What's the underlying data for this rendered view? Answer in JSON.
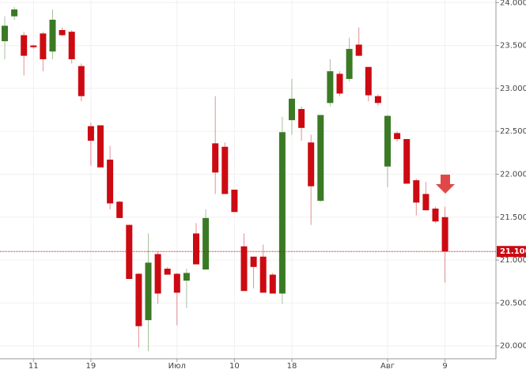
{
  "chart_data": {
    "type": "candlestick",
    "categories": [
      null,
      null,
      null,
      "11",
      null,
      null,
      null,
      null,
      null,
      "19",
      null,
      null,
      null,
      null,
      null,
      null,
      null,
      null,
      "Июл",
      null,
      null,
      null,
      null,
      null,
      "10",
      null,
      null,
      null,
      null,
      null,
      "18",
      null,
      null,
      null,
      null,
      null,
      null,
      null,
      null,
      null,
      "Авг",
      null,
      null,
      null,
      null,
      null,
      "9"
    ],
    "open": [
      23.55,
      23.84,
      23.62,
      23.5,
      23.64,
      23.43,
      23.68,
      23.66,
      23.26,
      22.56,
      22.57,
      22.17,
      21.68,
      21.41,
      20.84,
      20.3,
      21.07,
      20.9,
      20.84,
      20.76,
      21.31,
      20.89,
      22.36,
      22.32,
      21.82,
      21.16,
      21.04,
      21.04,
      20.83,
      20.61,
      22.63,
      22.76,
      22.37,
      21.69,
      22.83,
      23.17,
      23.11,
      23.51,
      23.25,
      22.91,
      22.09,
      22.48,
      22.41,
      21.93,
      21.77,
      21.6,
      21.5
    ],
    "high": [
      23.84,
      23.95,
      23.66,
      23.51,
      23.66,
      23.92,
      23.71,
      23.68,
      23.29,
      22.6,
      22.57,
      22.33,
      21.69,
      21.41,
      20.85,
      21.31,
      21.1,
      20.92,
      20.85,
      20.9,
      21.43,
      21.59,
      22.91,
      22.37,
      21.82,
      21.31,
      21.04,
      21.18,
      20.85,
      22.67,
      23.11,
      22.79,
      22.46,
      22.69,
      23.34,
      23.2,
      23.59,
      23.71,
      23.25,
      22.93,
      22.69,
      22.5,
      22.41,
      21.95,
      21.91,
      21.62,
      21.62
    ],
    "low": [
      23.34,
      23.8,
      23.15,
      23.46,
      23.2,
      23.34,
      23.61,
      23.29,
      22.85,
      22.1,
      22.08,
      21.59,
      21.49,
      20.78,
      19.98,
      19.94,
      20.49,
      20.83,
      20.24,
      20.44,
      20.95,
      20.89,
      21.77,
      21.77,
      21.56,
      20.64,
      20.67,
      20.62,
      20.61,
      20.49,
      22.46,
      22.39,
      21.41,
      21.68,
      22.79,
      22.91,
      23.08,
      23.38,
      22.85,
      22.8,
      21.85,
      22.38,
      21.89,
      21.52,
      21.58,
      21.43,
      20.74
    ],
    "close": [
      23.73,
      23.92,
      23.38,
      23.48,
      23.34,
      23.8,
      23.62,
      23.34,
      22.91,
      22.39,
      22.08,
      21.66,
      21.49,
      20.78,
      20.23,
      20.97,
      20.61,
      20.83,
      20.62,
      20.85,
      20.95,
      21.49,
      22.02,
      21.77,
      21.56,
      20.64,
      20.92,
      20.62,
      20.61,
      22.49,
      22.88,
      22.54,
      21.86,
      22.69,
      23.2,
      22.94,
      23.46,
      23.38,
      22.92,
      22.83,
      22.68,
      22.41,
      21.89,
      21.67,
      21.58,
      21.45,
      21.1
    ],
    "up_color": "#3b7a25",
    "down_color": "#cc0a12",
    "ylim": [
      19.85,
      24.03
    ],
    "yticks": [
      {
        "value": 20,
        "label": "20.000"
      },
      {
        "value": 20.5,
        "label": "20.500"
      },
      {
        "value": 21,
        "label": "21.000"
      },
      {
        "value": 21.5,
        "label": "21.500"
      },
      {
        "value": 22,
        "label": "22.000"
      },
      {
        "value": 22.5,
        "label": "22.500"
      },
      {
        "value": 23,
        "label": "23.000"
      },
      {
        "value": 23.5,
        "label": "23.500"
      },
      {
        "value": 24,
        "label": "24.000"
      }
    ],
    "current_price": {
      "value": 21.1,
      "label": "21.100"
    },
    "grid": true
  }
}
